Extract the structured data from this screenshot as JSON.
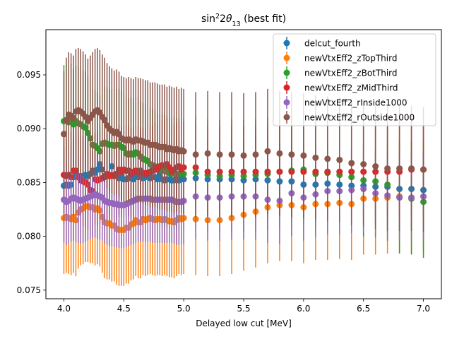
{
  "chart_data": {
    "type": "scatter",
    "title_prefix": "sin",
    "title_sup": "2",
    "title_mid": "2",
    "title_symbol": "θ",
    "title_sub": "13",
    "title_suffix": " (best fit)",
    "xlabel": "Delayed low cut [MeV]",
    "ylabel": "",
    "xlim": [
      3.85,
      7.15
    ],
    "ylim": [
      0.0742,
      0.0992
    ],
    "xticks": [
      4.0,
      4.5,
      5.0,
      5.5,
      6.0,
      6.5,
      7.0
    ],
    "xtick_labels": [
      "4.0",
      "4.5",
      "5.0",
      "5.5",
      "6.0",
      "6.5",
      "7.0"
    ],
    "yticks": [
      0.075,
      0.08,
      0.085,
      0.09,
      0.095
    ],
    "ytick_labels": [
      "0.075",
      "0.080",
      "0.085",
      "0.090",
      "0.095"
    ],
    "grid": false,
    "legend_position": "top-right",
    "error_bars": true,
    "x_fine": [
      4.0,
      4.02,
      4.04,
      4.06,
      4.08,
      4.1,
      4.12,
      4.14,
      4.16,
      4.18,
      4.2,
      4.22,
      4.24,
      4.26,
      4.28,
      4.3,
      4.32,
      4.34,
      4.36,
      4.38,
      4.4,
      4.42,
      4.44,
      4.46,
      4.48,
      4.5,
      4.52,
      4.54,
      4.56,
      4.58,
      4.6,
      4.62,
      4.64,
      4.66,
      4.68,
      4.7,
      4.72,
      4.74,
      4.76,
      4.78,
      4.8,
      4.82,
      4.84,
      4.86,
      4.88,
      4.9,
      4.92,
      4.94,
      4.96,
      4.98,
      5.0
    ],
    "x_coarse": [
      5.1,
      5.2,
      5.3,
      5.4,
      5.5,
      5.6,
      5.7,
      5.8,
      5.9,
      6.0,
      6.1,
      6.2,
      6.3,
      6.4,
      6.5,
      6.6,
      6.7,
      6.8,
      6.9,
      7.0
    ],
    "series": [
      {
        "name": "delcut_fourth",
        "color": "#1f77b4",
        "err": 0.0036,
        "y_fine": [
          0.0847,
          0.0848,
          0.0847,
          0.0848,
          0.0855,
          0.0859,
          0.0856,
          0.0856,
          0.0855,
          0.0857,
          0.0856,
          0.0858,
          0.0861,
          0.0859,
          0.0862,
          0.0867,
          0.0862,
          0.0855,
          0.0858,
          0.0856,
          0.0865,
          0.0857,
          0.0858,
          0.0854,
          0.0857,
          0.0853,
          0.0853,
          0.0854,
          0.0856,
          0.0853,
          0.0856,
          0.0855,
          0.0861,
          0.0854,
          0.0855,
          0.0856,
          0.0854,
          0.0855,
          0.0855,
          0.0853,
          0.0857,
          0.0853,
          0.0852,
          0.0853,
          0.0853,
          0.0852,
          0.0852,
          0.0853,
          0.0852,
          0.0853,
          0.0853
        ],
        "y_coarse": [
          0.0854,
          0.0853,
          0.0853,
          0.0853,
          0.0852,
          0.0853,
          0.0852,
          0.0851,
          0.0851,
          0.0848,
          0.0848,
          0.0849,
          0.0848,
          0.0847,
          0.0847,
          0.0846,
          0.0846,
          0.0844,
          0.0844,
          0.0843
        ]
      },
      {
        "name": "newVtxEff2_zTopThird",
        "color": "#ff7f0e",
        "err": 0.0052,
        "y_fine": [
          0.0817,
          0.0818,
          0.0817,
          0.0816,
          0.0818,
          0.0815,
          0.0822,
          0.0825,
          0.0826,
          0.0828,
          0.0828,
          0.0827,
          0.0827,
          0.0825,
          0.0826,
          0.0824,
          0.0818,
          0.0813,
          0.0812,
          0.0812,
          0.081,
          0.081,
          0.0807,
          0.0806,
          0.0806,
          0.0806,
          0.0808,
          0.0808,
          0.0811,
          0.0812,
          0.0815,
          0.0813,
          0.0813,
          0.0816,
          0.0815,
          0.0816,
          0.0817,
          0.0816,
          0.0815,
          0.0816,
          0.0816,
          0.0815,
          0.0816,
          0.0815,
          0.0814,
          0.0814,
          0.0813,
          0.0815,
          0.0817,
          0.0816,
          0.0817
        ],
        "y_coarse": [
          0.0816,
          0.0815,
          0.0815,
          0.0817,
          0.082,
          0.0823,
          0.0827,
          0.0829,
          0.0829,
          0.0827,
          0.083,
          0.083,
          0.0831,
          0.083,
          0.0835,
          0.0835,
          0.0836,
          0.0837,
          0.0836,
          0.0837
        ]
      },
      {
        "name": "newVtxEff2_zBotThird",
        "color": "#2ca02c",
        "err": 0.0052,
        "y_fine": [
          0.0907,
          0.0908,
          0.0906,
          0.0908,
          0.0904,
          0.0907,
          0.0905,
          0.0904,
          0.0902,
          0.0901,
          0.0896,
          0.0891,
          0.0885,
          0.0884,
          0.0882,
          0.0879,
          0.0886,
          0.0887,
          0.0886,
          0.0885,
          0.0885,
          0.0884,
          0.0885,
          0.0885,
          0.0883,
          0.0882,
          0.0877,
          0.0876,
          0.0877,
          0.0876,
          0.0878,
          0.0877,
          0.0874,
          0.0872,
          0.0871,
          0.087,
          0.0867,
          0.0866,
          0.0865,
          0.0862,
          0.0862,
          0.0861,
          0.0861,
          0.086,
          0.0859,
          0.0858,
          0.0859,
          0.0858,
          0.0858,
          0.0858,
          0.0858
        ],
        "y_coarse": [
          0.0859,
          0.0857,
          0.0856,
          0.0857,
          0.0856,
          0.0857,
          0.0858,
          0.086,
          0.0861,
          0.0862,
          0.0858,
          0.0859,
          0.0857,
          0.0855,
          0.0852,
          0.0851,
          0.0848,
          0.0836,
          0.0835,
          0.0832
        ]
      },
      {
        "name": "newVtxEff2_zMidThird",
        "color": "#d62728",
        "err": 0.0042,
        "y_fine": [
          0.0857,
          0.0856,
          0.0857,
          0.0855,
          0.0861,
          0.0861,
          0.0855,
          0.0852,
          0.0851,
          0.085,
          0.0848,
          0.0843,
          0.0842,
          0.0853,
          0.0852,
          0.0853,
          0.0854,
          0.0856,
          0.0857,
          0.0856,
          0.0857,
          0.0856,
          0.0858,
          0.0862,
          0.086,
          0.0862,
          0.0861,
          0.0861,
          0.0858,
          0.086,
          0.0861,
          0.086,
          0.0859,
          0.0859,
          0.0858,
          0.0859,
          0.086,
          0.0861,
          0.0864,
          0.0862,
          0.0865,
          0.0866,
          0.0866,
          0.0867,
          0.0864,
          0.086,
          0.0862,
          0.0864,
          0.0865,
          0.0862,
          0.0864
        ],
        "y_coarse": [
          0.0864,
          0.086,
          0.086,
          0.086,
          0.086,
          0.086,
          0.086,
          0.086,
          0.086,
          0.086,
          0.086,
          0.086,
          0.086,
          0.086,
          0.086,
          0.086,
          0.086,
          0.086,
          0.0862,
          0.0862
        ]
      },
      {
        "name": "newVtxEff2_rInside1000",
        "color": "#9467bd",
        "err": 0.004,
        "y_fine": [
          0.0834,
          0.0832,
          0.0833,
          0.0835,
          0.0836,
          0.0835,
          0.0834,
          0.0833,
          0.0834,
          0.0835,
          0.0836,
          0.0837,
          0.0838,
          0.0839,
          0.0838,
          0.0837,
          0.0836,
          0.0833,
          0.0832,
          0.0831,
          0.0831,
          0.083,
          0.083,
          0.0829,
          0.0829,
          0.0829,
          0.083,
          0.0831,
          0.0832,
          0.0833,
          0.0834,
          0.0835,
          0.0835,
          0.0835,
          0.0835,
          0.0835,
          0.0835,
          0.0834,
          0.0834,
          0.0834,
          0.0834,
          0.0834,
          0.0834,
          0.0834,
          0.0834,
          0.0834,
          0.0833,
          0.0832,
          0.0832,
          0.0832,
          0.0833
        ],
        "y_coarse": [
          0.0837,
          0.0836,
          0.0836,
          0.0837,
          0.0837,
          0.0837,
          0.0834,
          0.0833,
          0.084,
          0.0836,
          0.0839,
          0.0842,
          0.0842,
          0.0843,
          0.0844,
          0.084,
          0.0838,
          0.0836,
          0.0836,
          0.0837
        ]
      },
      {
        "name": "newVtxEff2_rOutside1000",
        "color": "#8c564b",
        "err": 0.0058,
        "y_fine": [
          0.0895,
          0.0908,
          0.0913,
          0.0912,
          0.091,
          0.0916,
          0.0917,
          0.0916,
          0.0914,
          0.0911,
          0.0907,
          0.091,
          0.0913,
          0.0916,
          0.0917,
          0.0915,
          0.0911,
          0.0908,
          0.0903,
          0.09,
          0.0898,
          0.0896,
          0.0897,
          0.0895,
          0.0891,
          0.089,
          0.0889,
          0.089,
          0.0889,
          0.0888,
          0.089,
          0.0889,
          0.0889,
          0.0888,
          0.0887,
          0.0887,
          0.0885,
          0.0885,
          0.0885,
          0.0884,
          0.0883,
          0.0883,
          0.0883,
          0.0881,
          0.0882,
          0.0881,
          0.088,
          0.0881,
          0.0879,
          0.088,
          0.0879
        ],
        "y_coarse": [
          0.0876,
          0.0877,
          0.0876,
          0.0876,
          0.0875,
          0.0876,
          0.0879,
          0.0877,
          0.0876,
          0.0875,
          0.0873,
          0.0872,
          0.0871,
          0.0868,
          0.0867,
          0.0865,
          0.0863,
          0.0863,
          0.0863,
          0.0862
        ]
      }
    ]
  }
}
